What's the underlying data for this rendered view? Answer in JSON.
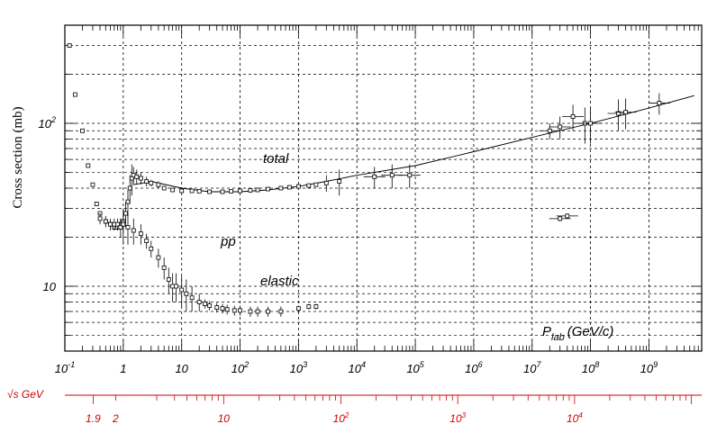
{
  "chart_data": {
    "type": "scatter",
    "title": "",
    "ylabel": "Cross section (mb)",
    "xscale": "log",
    "yscale": "log",
    "xlim": [
      0.1,
      8000000000
    ],
    "ylim": [
      4,
      400
    ],
    "grid": true,
    "x_tick_labels": [
      {
        "base": "10",
        "exp": "-1"
      },
      {
        "base": "1",
        "exp": ""
      },
      {
        "base": "10",
        "exp": ""
      },
      {
        "base": "10",
        "exp": "2"
      },
      {
        "base": "10",
        "exp": "3"
      },
      {
        "base": "10",
        "exp": "4"
      },
      {
        "base": "10",
        "exp": "5"
      },
      {
        "base": "10",
        "exp": "6"
      },
      {
        "base": "10",
        "exp": "7"
      },
      {
        "base": "10",
        "exp": "8"
      },
      {
        "base": "10",
        "exp": "9"
      }
    ],
    "y_tick_labels": [
      {
        "value": 10,
        "base": "10",
        "exp": ""
      },
      {
        "value": 100,
        "base": "10",
        "exp": "2"
      }
    ],
    "annotations": {
      "total": "total",
      "pp": "pp",
      "elastic": "elastic",
      "plab_main": "P",
      "plab_sub": "lab",
      "plab_unit": "(GeV/c)"
    },
    "sqrt_s_axis": {
      "label": "√s GeV",
      "color": "#d00000",
      "tick_labels": [
        {
          "value": 1.9,
          "base": "1.9",
          "exp": ""
        },
        {
          "value": 2,
          "base": "2",
          "exp": ""
        },
        {
          "value": 10,
          "base": "10",
          "exp": ""
        },
        {
          "value": 100,
          "base": "10",
          "exp": "2"
        },
        {
          "value": 1000,
          "base": "10",
          "exp": "3"
        },
        {
          "value": 10000,
          "base": "10",
          "exp": "4"
        }
      ]
    },
    "fit_curve": {
      "name": "total",
      "x": [
        1.5,
        3,
        10,
        30,
        100,
        300,
        1000,
        3000,
        10000,
        100000,
        1000000,
        10000000,
        100000000,
        1000000000,
        6000000000
      ],
      "y": [
        42,
        44,
        40,
        38,
        38,
        39,
        41,
        44,
        48,
        55,
        67,
        82,
        100,
        124,
        148
      ]
    },
    "series": [
      {
        "name": "total",
        "x": [
          0.12,
          0.15,
          0.2,
          0.25,
          0.3,
          0.35,
          0.4,
          0.5,
          0.6,
          0.7,
          0.8,
          0.9,
          1.0,
          1.1,
          1.2,
          1.3,
          1.4,
          1.5,
          1.7,
          2,
          2.5,
          3,
          4,
          5,
          7,
          10,
          15,
          20,
          30,
          50,
          70,
          100,
          150,
          200,
          300,
          500,
          700,
          1000,
          1500,
          2000,
          3000,
          5000,
          20000,
          40000,
          80000,
          20000000,
          30000000,
          50000000,
          80000000,
          100000000,
          300000000,
          400000000,
          1500000000
        ],
        "y": [
          300,
          150,
          90,
          55,
          42,
          32,
          28,
          25,
          24,
          23,
          23,
          24,
          25,
          28,
          33,
          40,
          46,
          48,
          47,
          46,
          44,
          43,
          42,
          40,
          39,
          38.5,
          38.5,
          38.3,
          38,
          38,
          38.3,
          38.5,
          38.8,
          39,
          39.5,
          40,
          40.5,
          41,
          41.5,
          42,
          43,
          44,
          47,
          48,
          48,
          90,
          95,
          110,
          100,
          100,
          115,
          117,
          133
        ],
        "yerr": [
          0,
          0,
          0,
          0,
          0,
          0,
          0,
          1,
          1,
          1,
          1,
          2,
          3,
          5,
          6,
          8,
          10,
          6,
          5,
          4,
          3,
          2,
          2,
          1,
          1,
          1,
          0.5,
          0.5,
          0.5,
          0.5,
          0.5,
          0.5,
          0.5,
          0.5,
          0.5,
          0.5,
          0.5,
          0.5,
          1,
          1,
          5,
          8,
          7,
          8,
          8,
          10,
          15,
          20,
          25,
          25,
          25,
          25,
          20
        ]
      },
      {
        "name": "elastic",
        "x": [
          0.4,
          0.5,
          0.6,
          0.7,
          0.8,
          0.9,
          1.0,
          1.2,
          1.5,
          2,
          2.5,
          3,
          4,
          5,
          6,
          7,
          8,
          10,
          12,
          15,
          20,
          25,
          30,
          40,
          50,
          60,
          80,
          100,
          150,
          200,
          300,
          500,
          1000,
          1500,
          2000,
          30000000,
          40000000
        ],
        "y": [
          26,
          25,
          24,
          24,
          24,
          23,
          24,
          23,
          22,
          21,
          19,
          17,
          15,
          13,
          11,
          10,
          10,
          9.5,
          9,
          8.5,
          8,
          7.8,
          7.6,
          7.4,
          7.3,
          7.2,
          7.1,
          7.1,
          7.0,
          7.0,
          7.0,
          7.0,
          7.3,
          7.5,
          7.5,
          26,
          27
        ],
        "yerr": [
          2,
          2,
          2,
          2,
          2,
          3,
          6,
          5,
          4,
          3,
          2,
          2,
          2,
          2,
          2,
          2,
          2,
          2,
          2,
          1.5,
          1,
          0.5,
          0.5,
          0.5,
          0.5,
          0.5,
          0.5,
          0.5,
          0.5,
          0.5,
          0.5,
          0.5,
          0.3,
          0.3,
          0.3,
          1,
          1
        ]
      }
    ]
  }
}
